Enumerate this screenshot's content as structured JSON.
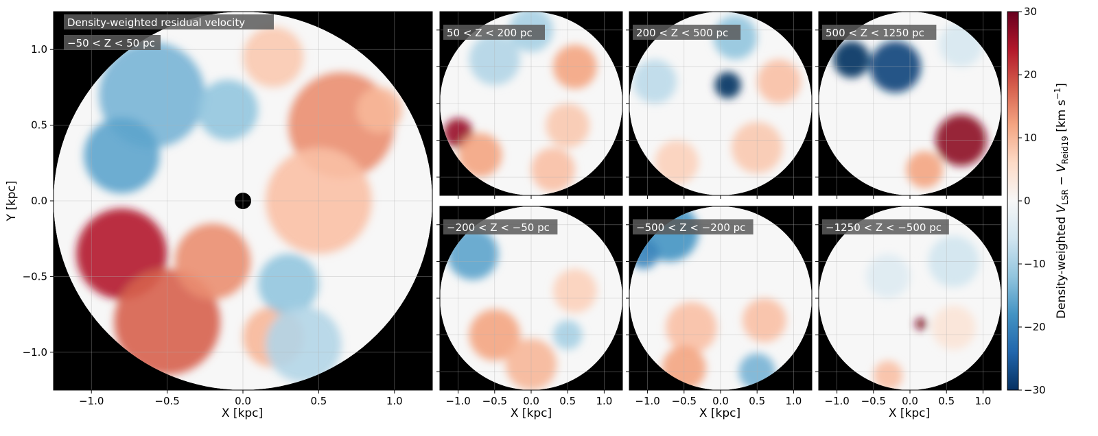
{
  "figure_title": "Density-weighted residual velocity",
  "colors": {
    "background": "#000000",
    "cmap": [
      "#053061",
      "#2166ac",
      "#4393c3",
      "#92c5de",
      "#d1e5f0",
      "#f7f7f7",
      "#fddbc7",
      "#f4a582",
      "#d6604d",
      "#b2182b",
      "#67001f"
    ]
  },
  "chart_data": [
    {
      "type": "heatmap",
      "panel": "main",
      "label": "−50 < Z < 50 pc",
      "xlabel": "X [kpc]",
      "ylabel": "Y [kpc]",
      "xlim": [
        -1.25,
        1.25
      ],
      "ylim": [
        -1.25,
        1.25
      ],
      "xticks": [
        -1.0,
        -0.5,
        0.0,
        0.5,
        1.0
      ],
      "xtick_labels": [
        "−1.0",
        "−0.5",
        "0.0",
        "0.5",
        "1.0"
      ],
      "yticks": [
        1.0,
        0.5,
        0.0,
        -0.5,
        -1.0
      ],
      "ytick_labels": [
        "1.0",
        "0.5",
        "0.0",
        "−0.5",
        "−1.0"
      ],
      "grid": true,
      "blobs": [
        {
          "x": 0.65,
          "y": 0.5,
          "r": 0.35,
          "v": 14
        },
        {
          "x": 0.5,
          "y": 0.0,
          "r": 0.35,
          "v": 9
        },
        {
          "x": 0.2,
          "y": 0.95,
          "r": 0.2,
          "v": 8
        },
        {
          "x": -0.8,
          "y": -0.35,
          "r": 0.3,
          "v": 24
        },
        {
          "x": -0.5,
          "y": -0.8,
          "r": 0.35,
          "v": 18
        },
        {
          "x": -0.2,
          "y": -0.4,
          "r": 0.25,
          "v": 14
        },
        {
          "x": 0.2,
          "y": -0.9,
          "r": 0.2,
          "v": 10
        },
        {
          "x": -0.6,
          "y": 0.7,
          "r": 0.35,
          "v": -14
        },
        {
          "x": -0.8,
          "y": 0.3,
          "r": 0.25,
          "v": -16
        },
        {
          "x": -0.1,
          "y": 0.6,
          "r": 0.2,
          "v": -12
        },
        {
          "x": 0.3,
          "y": -0.55,
          "r": 0.2,
          "v": -12
        },
        {
          "x": 0.4,
          "y": -0.95,
          "r": 0.25,
          "v": -9
        },
        {
          "x": 0.9,
          "y": 0.6,
          "r": 0.15,
          "v": 10
        }
      ]
    },
    {
      "type": "heatmap",
      "panel": "top-1",
      "label": "50 < Z < 200 pc",
      "xlim": [
        -1.25,
        1.25
      ],
      "ylim": [
        -1.25,
        1.25
      ],
      "blobs": [
        {
          "x": -1.0,
          "y": -0.4,
          "r": 0.2,
          "v": 26
        },
        {
          "x": -0.7,
          "y": -0.7,
          "r": 0.3,
          "v": 12
        },
        {
          "x": 0.6,
          "y": 0.5,
          "r": 0.3,
          "v": 12
        },
        {
          "x": 0.5,
          "y": -0.3,
          "r": 0.3,
          "v": 8
        },
        {
          "x": -0.5,
          "y": 0.6,
          "r": 0.35,
          "v": -9
        },
        {
          "x": 0.0,
          "y": 1.0,
          "r": 0.3,
          "v": -10
        },
        {
          "x": 0.3,
          "y": -0.9,
          "r": 0.3,
          "v": 9
        }
      ]
    },
    {
      "type": "heatmap",
      "panel": "top-2",
      "label": "200 < Z < 500 pc",
      "xlim": [
        -1.25,
        1.25
      ],
      "ylim": [
        -1.25,
        1.25
      ],
      "blobs": [
        {
          "x": 0.1,
          "y": 0.25,
          "r": 0.18,
          "v": -30
        },
        {
          "x": 0.2,
          "y": 0.9,
          "r": 0.3,
          "v": -12
        },
        {
          "x": -0.9,
          "y": 0.3,
          "r": 0.3,
          "v": -8
        },
        {
          "x": 0.8,
          "y": 0.3,
          "r": 0.3,
          "v": 9
        },
        {
          "x": 0.5,
          "y": -0.6,
          "r": 0.35,
          "v": 8
        },
        {
          "x": -0.6,
          "y": -0.8,
          "r": 0.3,
          "v": 7
        }
      ]
    },
    {
      "type": "heatmap",
      "panel": "top-3",
      "label": "500 < Z < 1250 pc",
      "xlim": [
        -1.25,
        1.25
      ],
      "ylim": [
        -1.25,
        1.25
      ],
      "blobs": [
        {
          "x": -0.8,
          "y": 0.6,
          "r": 0.25,
          "v": -30
        },
        {
          "x": -0.2,
          "y": 0.5,
          "r": 0.35,
          "v": -28
        },
        {
          "x": 0.7,
          "y": -0.5,
          "r": 0.35,
          "v": 27
        },
        {
          "x": 0.2,
          "y": -0.9,
          "r": 0.25,
          "v": 12
        },
        {
          "x": 0.7,
          "y": 0.8,
          "r": 0.3,
          "v": -5
        }
      ]
    },
    {
      "type": "heatmap",
      "panel": "bottom-1",
      "label": "−200 < Z < −50 pc",
      "xlim": [
        -1.25,
        1.25
      ],
      "ylim": [
        -1.25,
        1.25
      ],
      "xlabel": "X [kpc]",
      "xticks": [
        -1.0,
        -0.5,
        0.0,
        0.5,
        1.0
      ],
      "xtick_labels": [
        "−1.0",
        "−0.5",
        "0.0",
        "0.5",
        "1.0"
      ],
      "blobs": [
        {
          "x": -0.8,
          "y": 0.6,
          "r": 0.35,
          "v": -16
        },
        {
          "x": -0.5,
          "y": -0.5,
          "r": 0.35,
          "v": 12
        },
        {
          "x": 0.0,
          "y": -0.9,
          "r": 0.35,
          "v": 10
        },
        {
          "x": 0.6,
          "y": 0.1,
          "r": 0.3,
          "v": 7
        },
        {
          "x": 0.5,
          "y": -0.5,
          "r": 0.2,
          "v": -10
        }
      ]
    },
    {
      "type": "heatmap",
      "panel": "bottom-2",
      "label": "−500 < Z < −200 pc",
      "xlim": [
        -1.25,
        1.25
      ],
      "ylim": [
        -1.25,
        1.25
      ],
      "xlabel": "X [kpc]",
      "xticks": [
        -1.0,
        -0.5,
        0.0,
        0.5,
        1.0
      ],
      "xtick_labels": [
        "−1.0",
        "−0.5",
        "0.0",
        "0.5",
        "1.0"
      ],
      "blobs": [
        {
          "x": -0.7,
          "y": 0.9,
          "r": 0.4,
          "v": -18
        },
        {
          "x": -1.05,
          "y": 0.6,
          "r": 0.2,
          "v": -20
        },
        {
          "x": -0.4,
          "y": -0.4,
          "r": 0.35,
          "v": 9
        },
        {
          "x": 0.6,
          "y": -0.3,
          "r": 0.3,
          "v": 9
        },
        {
          "x": -0.5,
          "y": -0.95,
          "r": 0.3,
          "v": 12
        },
        {
          "x": 0.5,
          "y": -1.0,
          "r": 0.25,
          "v": -14
        }
      ]
    },
    {
      "type": "heatmap",
      "panel": "bottom-3",
      "label": "−1250 < Z < −500 pc",
      "xlim": [
        -1.25,
        1.25
      ],
      "ylim": [
        -1.25,
        1.25
      ],
      "xlabel": "X [kpc]",
      "xticks": [
        -1.0,
        -0.5,
        0.0,
        0.5,
        1.0
      ],
      "xtick_labels": [
        "−1.0",
        "−0.5",
        "0.0",
        "0.5",
        "1.0"
      ],
      "blobs": [
        {
          "x": 0.15,
          "y": -0.35,
          "r": 0.08,
          "v": 28
        },
        {
          "x": 0.6,
          "y": 0.5,
          "r": 0.35,
          "v": -6
        },
        {
          "x": -0.3,
          "y": 0.3,
          "r": 0.3,
          "v": -4
        },
        {
          "x": -0.3,
          "y": -1.05,
          "r": 0.2,
          "v": 9
        },
        {
          "x": 0.6,
          "y": -0.4,
          "r": 0.3,
          "v": 4
        }
      ]
    }
  ],
  "colorbar": {
    "label": "Density-weighted V_LSR − V_Reid19 [km s⁻¹]",
    "label_main": "Density-weighted ",
    "label_v1": "V",
    "label_sub1": "LSR",
    "label_minus": " − ",
    "label_v2": "V",
    "label_sub2": "Reid19",
    "label_units": " [km s",
    "label_exp": "−1",
    "label_close": "]",
    "range": [
      -30,
      30
    ],
    "ticks": [
      30,
      20,
      10,
      0,
      -10,
      -20,
      -30
    ],
    "tick_labels": [
      "30",
      "20",
      "10",
      "0",
      "−10",
      "−20",
      "−30"
    ]
  }
}
